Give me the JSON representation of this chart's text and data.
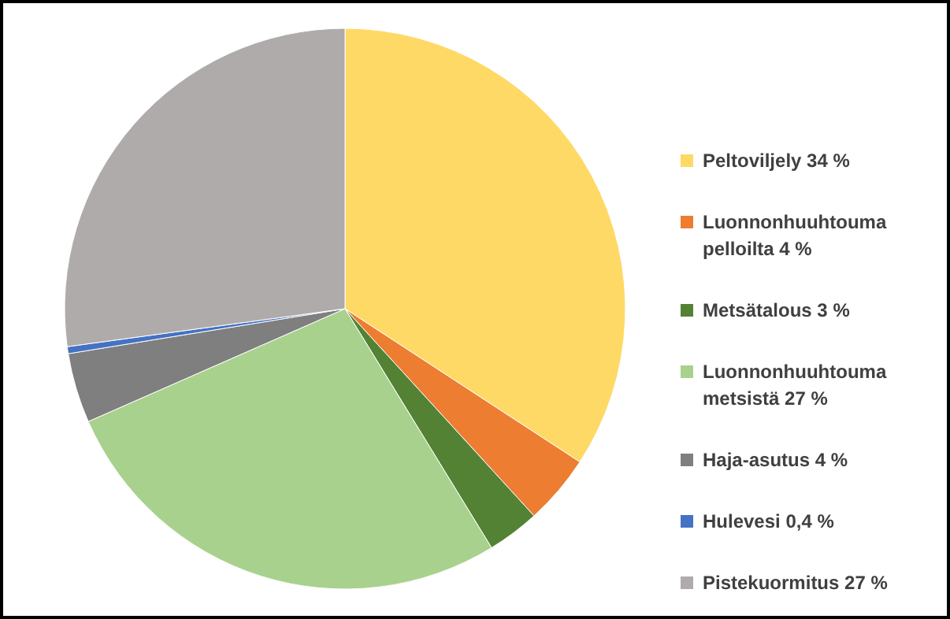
{
  "chart_data": {
    "type": "pie",
    "categories": [
      "Peltoviljely 34 %",
      "Luonnonhuuhtouma pelloilta 4 %",
      "Metsätalous 3 %",
      "Luonnonhuuhtouma metsistä 27 %",
      "Haja-asutus 4 %",
      "Hulevesi 0,4 %",
      "Pistekuormitus 27 %"
    ],
    "values": [
      34,
      4,
      3,
      27,
      4,
      0.4,
      27
    ],
    "colors": [
      "#ffd966",
      "#ed7d31",
      "#548235",
      "#a9d18e",
      "#7f7f7f",
      "#4472c4",
      "#afabab"
    ],
    "legend": "right"
  }
}
